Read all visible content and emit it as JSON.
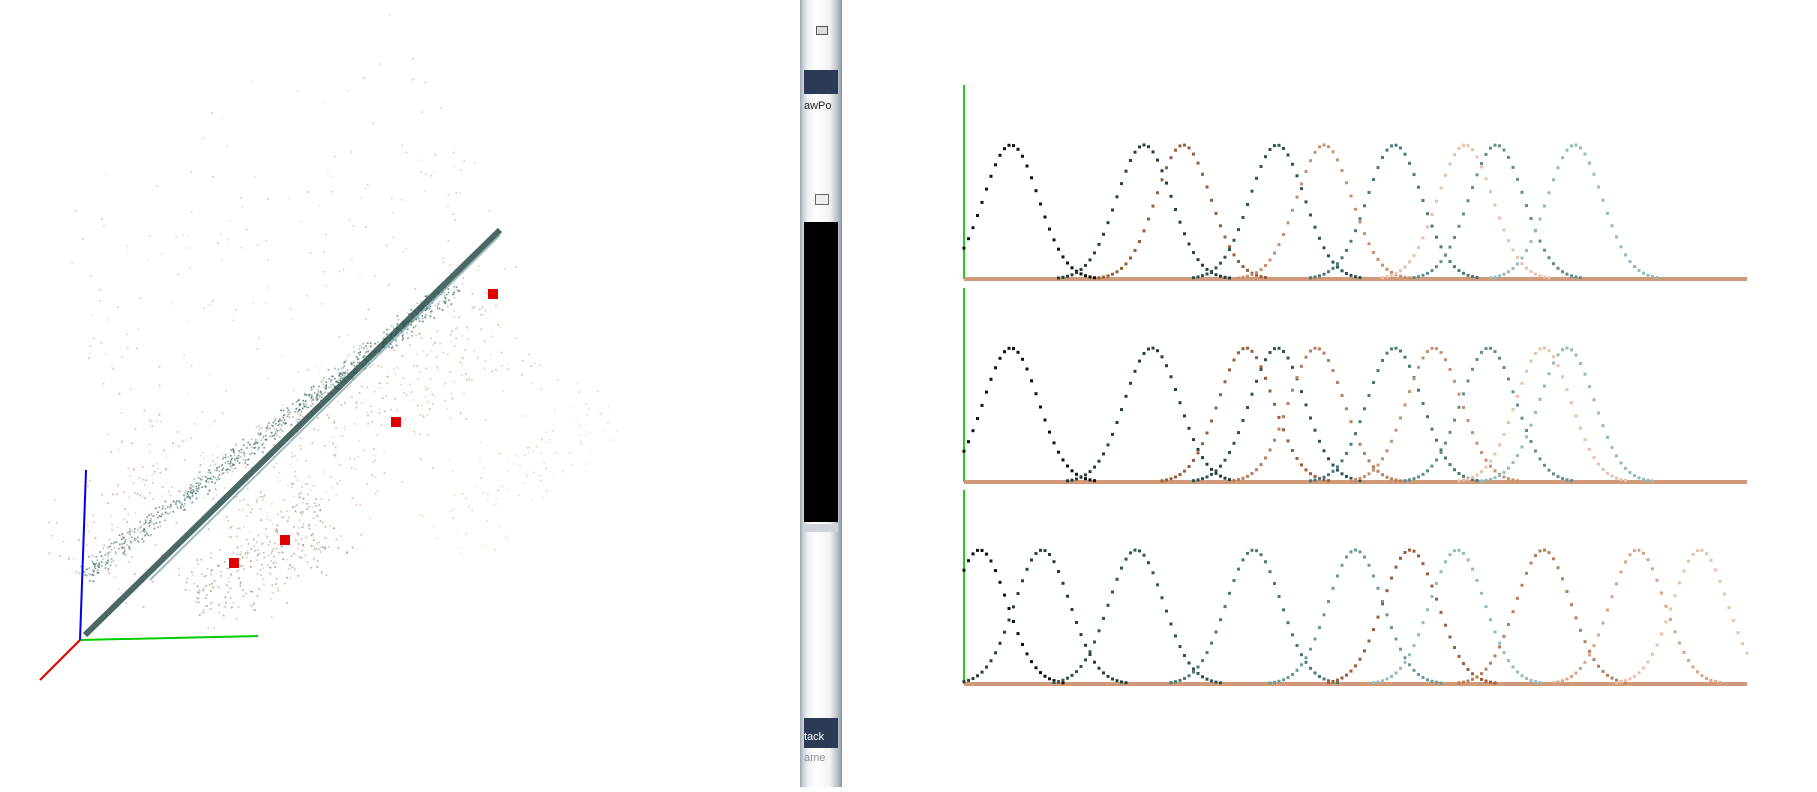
{
  "scatter_view": {
    "axes": {
      "x_color": "#00cc00",
      "y_color": "#0000ee",
      "z_color": "#dd0000"
    },
    "clusters": [
      {
        "color": "#3d6d6b",
        "density": 0.95
      },
      {
        "color": "#c9a07e",
        "density": 0.45
      },
      {
        "color": "#a0826a",
        "density": 0.3
      },
      {
        "color": "#b0b6c8",
        "density": 0.2
      },
      {
        "color": "#d88a80",
        "density": 0.15
      },
      {
        "color": "#c9d0a0",
        "density": 0.12
      }
    ],
    "markers": [
      {
        "label": "marker-1",
        "color": "#e00000"
      },
      {
        "label": "marker-2",
        "color": "#e00000"
      },
      {
        "label": "marker-3",
        "color": "#e00000"
      },
      {
        "label": "marker-4",
        "color": "#e00000"
      }
    ]
  },
  "splitter": {
    "label_top": "awPo",
    "label_bottom": "tack",
    "label_bottom2": "ame"
  },
  "curve_view": {
    "axis_color": "#22cc22",
    "baseline_color": "#d09a78",
    "palette": [
      "#111111",
      "#263f3b",
      "#2f5553",
      "#4a7a78",
      "#8fbcbc",
      "#9b5c3a",
      "#b97d58",
      "#d9a386",
      "#ecbfa6"
    ],
    "panels": [
      {
        "name": "top-panel",
        "peaks": [
          {
            "center": 0.06,
            "color": "#111111"
          },
          {
            "center": 0.23,
            "color": "#263f3b"
          },
          {
            "center": 0.28,
            "color": "#9b5c3a"
          },
          {
            "center": 0.4,
            "color": "#2f5553"
          },
          {
            "center": 0.46,
            "color": "#c98f6c"
          },
          {
            "center": 0.55,
            "color": "#4a7a78"
          },
          {
            "center": 0.64,
            "color": "#ecbfa6"
          },
          {
            "center": 0.68,
            "color": "#5f8f8d"
          },
          {
            "center": 0.78,
            "color": "#8fbcbc"
          }
        ]
      },
      {
        "name": "middle-panel",
        "peaks": [
          {
            "center": 0.06,
            "color": "#111111"
          },
          {
            "center": 0.24,
            "color": "#263f3b"
          },
          {
            "center": 0.36,
            "color": "#9b5c3a"
          },
          {
            "center": 0.4,
            "color": "#2f5553"
          },
          {
            "center": 0.45,
            "color": "#b97d58"
          },
          {
            "center": 0.55,
            "color": "#4a7a78"
          },
          {
            "center": 0.6,
            "color": "#c98f6c"
          },
          {
            "center": 0.67,
            "color": "#5f8f8d"
          },
          {
            "center": 0.74,
            "color": "#ecbfa6"
          },
          {
            "center": 0.77,
            "color": "#8fbcbc"
          }
        ]
      },
      {
        "name": "bottom-panel",
        "peaks": [
          {
            "center": 0.02,
            "color": "#111111"
          },
          {
            "center": 0.1,
            "color": "#263f3b"
          },
          {
            "center": 0.22,
            "color": "#2f5553"
          },
          {
            "center": 0.37,
            "color": "#4a7a78"
          },
          {
            "center": 0.5,
            "color": "#6a9a98"
          },
          {
            "center": 0.57,
            "color": "#9b5c3a"
          },
          {
            "center": 0.63,
            "color": "#8fbcbc"
          },
          {
            "center": 0.74,
            "color": "#b97d58"
          },
          {
            "center": 0.86,
            "color": "#d9a386"
          },
          {
            "center": 0.94,
            "color": "#ecbfa6"
          }
        ]
      }
    ]
  }
}
